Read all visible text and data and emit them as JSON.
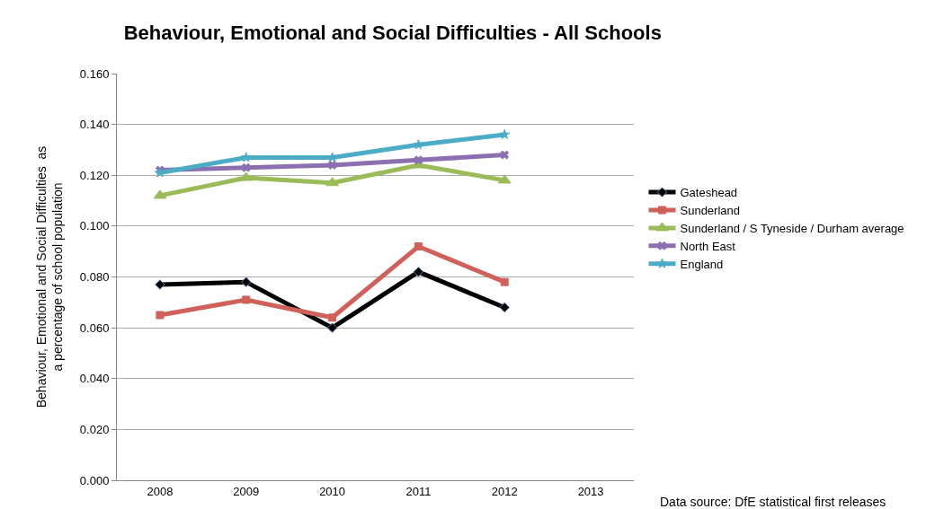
{
  "chart_data": {
    "type": "line",
    "title": "Behaviour, Emotional and Social Difficulties - All Schools",
    "ylabel": "Behaviour, Emotional and Social Difficulties  as a percentage of school population",
    "categories": [
      "2008",
      "2009",
      "2010",
      "2011",
      "2012",
      "2013"
    ],
    "series": [
      {
        "name": "Gateshead",
        "color": "#000000",
        "marker": "diamond",
        "values": [
          0.077,
          0.078,
          0.06,
          0.082,
          0.068,
          null
        ]
      },
      {
        "name": "Sunderland",
        "color": "#d0605a",
        "marker": "square",
        "values": [
          0.065,
          0.071,
          0.064,
          0.092,
          0.078,
          null
        ]
      },
      {
        "name": "Sunderland / S Tyneside / Durham average",
        "color": "#9bbb59",
        "marker": "triangle",
        "values": [
          0.112,
          0.119,
          0.117,
          0.124,
          0.118,
          null
        ]
      },
      {
        "name": "North East",
        "color": "#8c6fb0",
        "marker": "cross",
        "values": [
          0.122,
          0.123,
          0.124,
          0.126,
          0.128,
          null
        ]
      },
      {
        "name": "England",
        "color": "#4bacc6",
        "marker": "star",
        "values": [
          0.121,
          0.127,
          0.127,
          0.132,
          0.136,
          null
        ]
      }
    ],
    "ylim": [
      0,
      0.16
    ],
    "yticks": [
      {
        "value": 0,
        "label": "0.000"
      },
      {
        "value": 0.02,
        "label": "0.020"
      },
      {
        "value": 0.04,
        "label": "0.040"
      },
      {
        "value": 0.06,
        "label": "0.060"
      },
      {
        "value": 0.08,
        "label": "0.080"
      },
      {
        "value": 0.1,
        "label": "0.100"
      },
      {
        "value": 0.12,
        "label": "0.120"
      },
      {
        "value": 0.14,
        "label": "0.140"
      },
      {
        "value": 0.16,
        "label": "0.160"
      }
    ],
    "grid": "y",
    "legend": "right",
    "line_style": "solid",
    "annotations": [
      "Data source: DfE statistical first releases"
    ]
  }
}
